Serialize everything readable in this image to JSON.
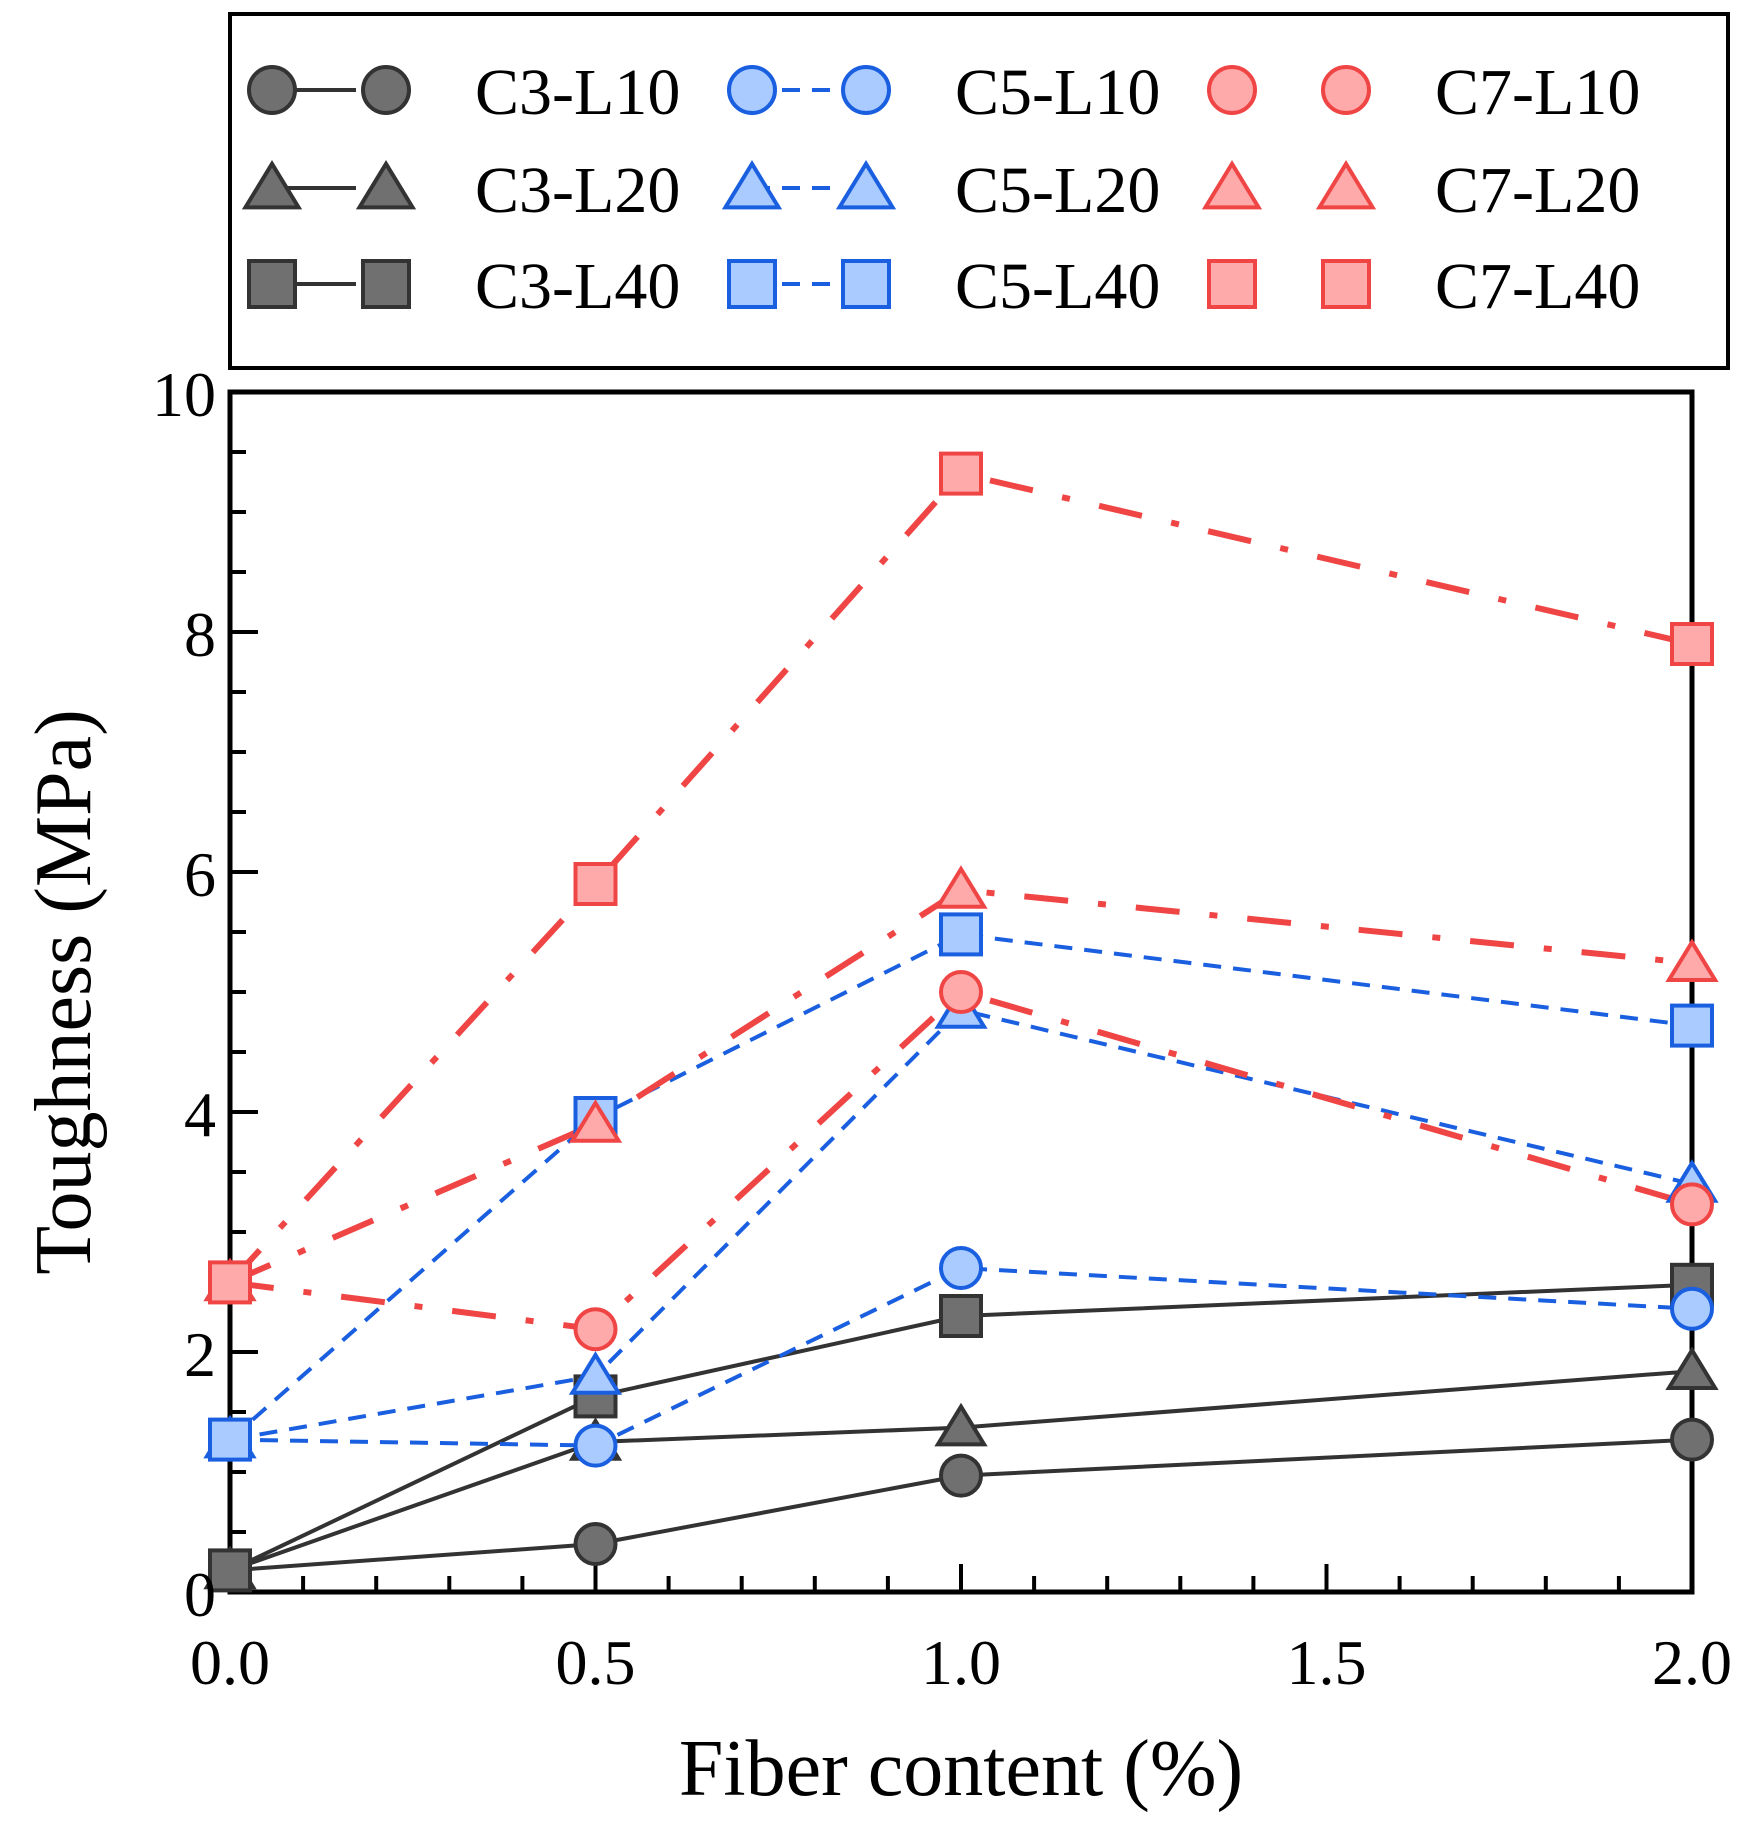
{
  "chart_data": {
    "type": "line",
    "title": "",
    "xlabel": "Fiber content (%)",
    "ylabel": "Toughness (MPa)",
    "x": [
      0.0,
      0.5,
      1.0,
      2.0
    ],
    "xlim": [
      0,
      2
    ],
    "ylim": [
      0,
      10
    ],
    "x_ticks": [
      "0.0",
      "0.5",
      "1.0",
      "1.5",
      "2.0"
    ],
    "y_ticks": [
      "0",
      "2",
      "4",
      "6",
      "8",
      "10"
    ],
    "legend_position": "top (above plot)",
    "series": [
      {
        "name": "C3-L10",
        "group": "C3",
        "marker": "circle",
        "values": [
          0.18,
          0.4,
          0.97,
          1.27
        ]
      },
      {
        "name": "C3-L20",
        "group": "C3",
        "marker": "triangle",
        "values": [
          0.18,
          1.25,
          1.37,
          1.84
        ]
      },
      {
        "name": "C3-L40",
        "group": "C3",
        "marker": "square",
        "values": [
          0.18,
          1.63,
          2.3,
          2.56
        ]
      },
      {
        "name": "C5-L10",
        "group": "C5",
        "marker": "circle",
        "values": [
          1.27,
          1.22,
          2.7,
          2.36
        ]
      },
      {
        "name": "C5-L20",
        "group": "C5",
        "marker": "triangle",
        "values": [
          1.27,
          1.8,
          4.85,
          3.4
        ]
      },
      {
        "name": "C5-L40",
        "group": "C5",
        "marker": "square",
        "values": [
          1.27,
          3.95,
          5.48,
          4.72
        ]
      },
      {
        "name": "C7-L10",
        "group": "C7",
        "marker": "circle",
        "values": [
          2.58,
          2.19,
          5.0,
          3.23
        ]
      },
      {
        "name": "C7-L20",
        "group": "C7",
        "marker": "triangle",
        "values": [
          2.58,
          3.9,
          5.85,
          5.24
        ]
      },
      {
        "name": "C7-L40",
        "group": "C7",
        "marker": "square",
        "values": [
          2.58,
          5.9,
          9.32,
          7.9
        ]
      }
    ]
  },
  "styles": {
    "C3": {
      "stroke": "#333333",
      "fill": "#707070",
      "line": "#333333"
    },
    "C5": {
      "stroke": "#1a5fe0",
      "fill": "#a9cbff",
      "line": "#1a5fe0"
    },
    "C7": {
      "stroke": "#f04545",
      "fill": "#ffaaaa",
      "line": "#f04545"
    }
  }
}
